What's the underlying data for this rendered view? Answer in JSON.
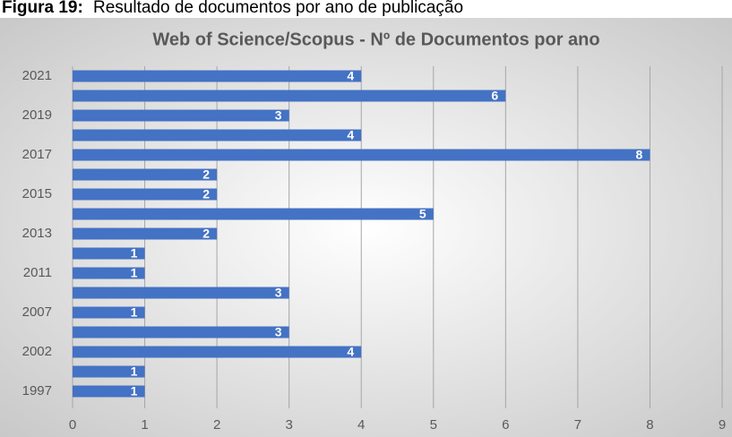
{
  "caption": {
    "label": "Figura 19:",
    "text": "Resultado de documentos por ano de publicação"
  },
  "chart_data": {
    "type": "hbar",
    "title": "Web of Science/Scopus - Nº de Documentos por ano",
    "categories": [
      "2021",
      null,
      "2019",
      null,
      "2017",
      null,
      "2015",
      null,
      "2013",
      null,
      "2011",
      null,
      "2007",
      null,
      "2002",
      null,
      "1997"
    ],
    "values": [
      4,
      6,
      3,
      4,
      8,
      2,
      2,
      5,
      2,
      1,
      1,
      3,
      1,
      3,
      4,
      1,
      1
    ],
    "color": "#4472c4",
    "xlim": [
      0,
      9
    ],
    "xticks": [
      0,
      1,
      2,
      3,
      4,
      5,
      6,
      7,
      8,
      9
    ],
    "grid": true
  }
}
